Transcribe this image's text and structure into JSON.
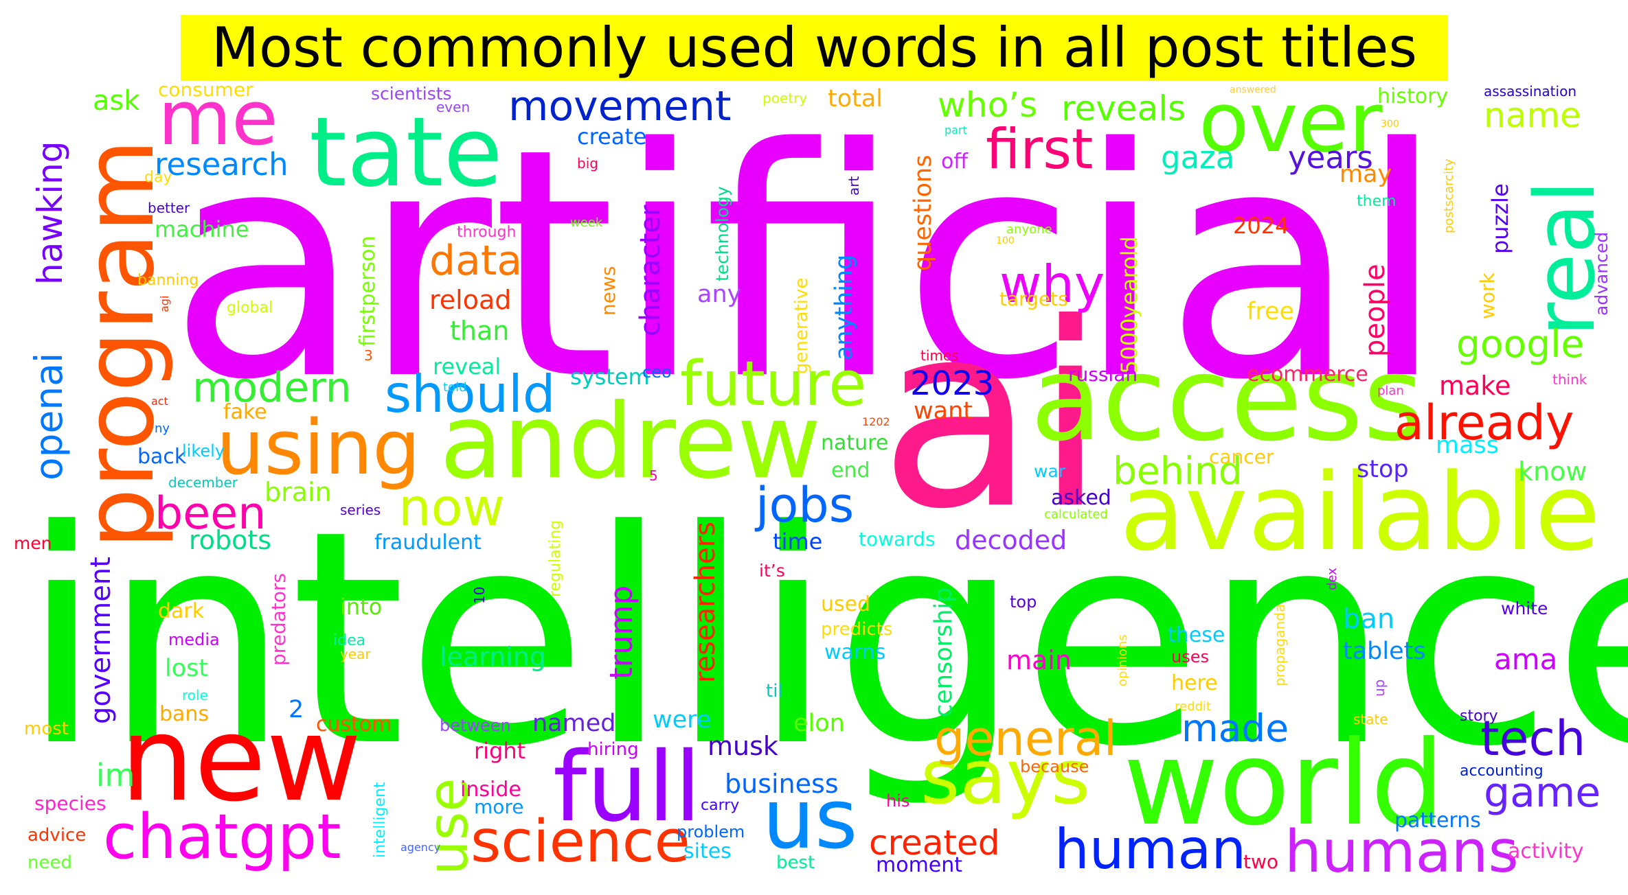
{
  "title": "Most commonly used words in all post titles",
  "words": [
    {
      "text": "artificial",
      "color": "#e800ff"
    },
    {
      "text": "intelligence",
      "color": "#00ee00"
    },
    {
      "text": "ai",
      "color": "#ff1a8c"
    },
    {
      "text": "access",
      "color": "#8cff00"
    },
    {
      "text": "available",
      "color": "#ccff00"
    },
    {
      "text": "andrew",
      "color": "#99ff00"
    },
    {
      "text": "world",
      "color": "#33ff00"
    },
    {
      "text": "new",
      "color": "#ff0000"
    },
    {
      "text": "full",
      "color": "#9900ff"
    },
    {
      "text": "program",
      "color": "#ff5500"
    },
    {
      "text": "tate",
      "color": "#00ee88"
    },
    {
      "text": "real",
      "color": "#00ee99"
    },
    {
      "text": "over",
      "color": "#55ff00"
    },
    {
      "text": "us",
      "color": "#0088ff"
    },
    {
      "text": "using",
      "color": "#ff8800"
    },
    {
      "text": "says",
      "color": "#ccff00"
    },
    {
      "text": "me",
      "color": "#ff33cc"
    },
    {
      "text": "chatgpt",
      "color": "#ff00ee"
    },
    {
      "text": "science",
      "color": "#ff3300"
    },
    {
      "text": "humans",
      "color": "#cc22ff"
    },
    {
      "text": "future",
      "color": "#99ff00"
    },
    {
      "text": "human",
      "color": "#0022ff"
    },
    {
      "text": "use",
      "color": "#99ff00"
    },
    {
      "text": "general",
      "color": "#ffaa00"
    },
    {
      "text": "first",
      "color": "#ff0077"
    },
    {
      "text": "why",
      "color": "#ee00ff"
    },
    {
      "text": "already",
      "color": "#ff1100"
    },
    {
      "text": "should",
      "color": "#0099ff"
    },
    {
      "text": "now",
      "color": "#ccff00"
    },
    {
      "text": "jobs",
      "color": "#0066ff"
    },
    {
      "text": "been",
      "color": "#ff00aa"
    },
    {
      "text": "movement",
      "color": "#0022cc"
    },
    {
      "text": "tech",
      "color": "#4400dd"
    },
    {
      "text": "game",
      "color": "#6622ff"
    },
    {
      "text": "made",
      "color": "#0077ff"
    },
    {
      "text": "created",
      "color": "#ff2200"
    },
    {
      "text": "google",
      "color": "#66ff00"
    },
    {
      "text": "behind",
      "color": "#88ff00"
    },
    {
      "text": "modern",
      "color": "#33ee33"
    },
    {
      "text": "data",
      "color": "#ff7700"
    },
    {
      "text": "hawking",
      "color": "#7700ff"
    },
    {
      "text": "openai",
      "color": "#0077ff"
    },
    {
      "text": "government",
      "color": "#5500ff"
    },
    {
      "text": "research",
      "color": "#0088ff"
    },
    {
      "text": "people",
      "color": "#ff0066"
    },
    {
      "text": "name",
      "color": "#bbff00"
    },
    {
      "text": "who’s",
      "color": "#66ff00"
    },
    {
      "text": "reveals",
      "color": "#55ff00"
    },
    {
      "text": "gaza",
      "color": "#00eebb"
    },
    {
      "text": "years",
      "color": "#5511dd"
    },
    {
      "text": "2023",
      "color": "#1100ee"
    },
    {
      "text": "character",
      "color": "#9900ff"
    },
    {
      "text": "researchers",
      "color": "#ff2200"
    },
    {
      "text": "trump",
      "color": "#cc00ff"
    },
    {
      "text": "censorship",
      "color": "#00ee66"
    },
    {
      "text": "decoded",
      "color": "#9933ff"
    },
    {
      "text": "robots",
      "color": "#00dd88"
    },
    {
      "text": "brain",
      "color": "#88ff00"
    },
    {
      "text": "learning",
      "color": "#00ee88"
    },
    {
      "text": "musk",
      "color": "#4400cc"
    },
    {
      "text": "business",
      "color": "#0066ff"
    },
    {
      "text": "ama",
      "color": "#cc00ff"
    },
    {
      "text": "main",
      "color": "#ff00cc"
    },
    {
      "text": "ban",
      "color": "#00ccff"
    },
    {
      "text": "tablets",
      "color": "#0088ff"
    },
    {
      "text": "im",
      "color": "#33ff55"
    },
    {
      "text": "ask",
      "color": "#55ff00"
    },
    {
      "text": "machine",
      "color": "#44ee44"
    },
    {
      "text": "questions",
      "color": "#ff6600"
    },
    {
      "text": "firstperson",
      "color": "#77ff00"
    },
    {
      "text": "5000yearold",
      "color": "#ccff00"
    },
    {
      "text": "anything",
      "color": "#0088ff"
    },
    {
      "text": "make",
      "color": "#ff0055"
    },
    {
      "text": "mass",
      "color": "#00eeff"
    },
    {
      "text": "know",
      "color": "#44ff44"
    },
    {
      "text": "stop",
      "color": "#5522ff"
    },
    {
      "text": "fraudulent",
      "color": "#0099ff"
    },
    {
      "text": "time",
      "color": "#0044ff"
    },
    {
      "text": "towards",
      "color": "#00ffdd"
    },
    {
      "text": "were",
      "color": "#00ccff"
    },
    {
      "text": "named",
      "color": "#6622dd"
    },
    {
      "text": "elon",
      "color": "#55ff00"
    },
    {
      "text": "right",
      "color": "#ff0077"
    },
    {
      "text": "inside",
      "color": "#ff0099"
    },
    {
      "text": "more",
      "color": "#0099ff"
    },
    {
      "text": "sites",
      "color": "#00ccff"
    },
    {
      "text": "moment",
      "color": "#4400ff"
    },
    {
      "text": "two",
      "color": "#ff0044"
    },
    {
      "text": "best",
      "color": "#00ee99"
    },
    {
      "text": "patterns",
      "color": "#0077ff"
    },
    {
      "text": "activity",
      "color": "#ff33cc"
    },
    {
      "text": "species",
      "color": "#ff22cc"
    },
    {
      "text": "advice",
      "color": "#ff3300"
    },
    {
      "text": "need",
      "color": "#66ff33"
    },
    {
      "text": "most",
      "color": "#ffcc00"
    },
    {
      "text": "custom",
      "color": "#ff5500"
    },
    {
      "text": "bans",
      "color": "#ffaa00"
    },
    {
      "text": "lost",
      "color": "#33ff55"
    },
    {
      "text": "into",
      "color": "#55ee00"
    },
    {
      "text": "dark",
      "color": "#ffcc00"
    },
    {
      "text": "2",
      "color": "#0077ff"
    },
    {
      "text": "predators",
      "color": "#ff33cc"
    },
    {
      "text": "reveal",
      "color": "#00ee99"
    },
    {
      "text": "system",
      "color": "#00ccbb"
    },
    {
      "text": "reload",
      "color": "#ff3300"
    },
    {
      "text": "than",
      "color": "#33ee33"
    },
    {
      "text": "news",
      "color": "#ff8800"
    },
    {
      "text": "create",
      "color": "#0066ff"
    },
    {
      "text": "total",
      "color": "#ffaa00"
    },
    {
      "text": "consumer",
      "color": "#ffdd00"
    },
    {
      "text": "scientists",
      "color": "#9944ff"
    },
    {
      "text": "history",
      "color": "#66ff00"
    },
    {
      "text": "assassination",
      "color": "#2200dd"
    },
    {
      "text": "may",
      "color": "#ff8800"
    },
    {
      "text": "2024",
      "color": "#ff3300"
    },
    {
      "text": "free",
      "color": "#ffdd00"
    },
    {
      "text": "puzzle",
      "color": "#5500ee"
    },
    {
      "text": "work",
      "color": "#ffcc00"
    },
    {
      "text": "advanced",
      "color": "#9933ff"
    },
    {
      "text": "ecommerce",
      "color": "#ff2266"
    },
    {
      "text": "russian",
      "color": "#cc00ff"
    },
    {
      "text": "want",
      "color": "#ff4400"
    },
    {
      "text": "off",
      "color": "#cc22ff"
    },
    {
      "text": "generative",
      "color": "#ffdd00"
    },
    {
      "text": "technology",
      "color": "#00dd88"
    },
    {
      "text": "any",
      "color": "#aa44ff"
    },
    {
      "text": "nature",
      "color": "#33dd33"
    },
    {
      "text": "end",
      "color": "#44ee44"
    },
    {
      "text": "war",
      "color": "#00ccff"
    },
    {
      "text": "asked",
      "color": "#4400cc"
    },
    {
      "text": "cancer",
      "color": "#ffcc00"
    },
    {
      "text": "fake",
      "color": "#ffaa00"
    },
    {
      "text": "back",
      "color": "#0066ff"
    },
    {
      "text": "likely",
      "color": "#00ccff"
    },
    {
      "text": "ceo",
      "color": "#0066ff"
    },
    {
      "text": "targets",
      "color": "#ffcc00"
    },
    {
      "text": "top",
      "color": "#5500dd"
    },
    {
      "text": "used",
      "color": "#ffcc00"
    },
    {
      "text": "predicts",
      "color": "#ffdd00"
    },
    {
      "text": "warns",
      "color": "#00ccff"
    },
    {
      "text": "these",
      "color": "#00ccff"
    },
    {
      "text": "uses",
      "color": "#ff0055"
    },
    {
      "text": "here",
      "color": "#ffcc00"
    },
    {
      "text": "white",
      "color": "#5500ee"
    },
    {
      "text": "story",
      "color": "#4400cc"
    },
    {
      "text": "accounting",
      "color": "#0022cc"
    },
    {
      "text": "hiring",
      "color": "#cc00ff"
    },
    {
      "text": "til",
      "color": "#00ccbb"
    },
    {
      "text": "carry",
      "color": "#4400ff"
    },
    {
      "text": "problem",
      "color": "#0066ff"
    },
    {
      "text": "his",
      "color": "#ff0099"
    },
    {
      "text": "because",
      "color": "#ff6600"
    },
    {
      "text": "it’s",
      "color": "#ff0055"
    },
    {
      "text": "between",
      "color": "#9944ff"
    },
    {
      "text": "intelligent",
      "color": "#00eeff"
    },
    {
      "text": "agency",
      "color": "#4466ff"
    },
    {
      "text": "media",
      "color": "#cc00ff"
    },
    {
      "text": "idea",
      "color": "#00eeaa"
    },
    {
      "text": "year",
      "color": "#ffcc00"
    },
    {
      "text": "role",
      "color": "#00ffdd"
    },
    {
      "text": "10",
      "color": "#4400dd"
    },
    {
      "text": "regulating",
      "color": "#ccff00"
    },
    {
      "text": "propaganda",
      "color": "#ffdd00"
    },
    {
      "text": "opinions",
      "color": "#ffdd00"
    },
    {
      "text": "reddit",
      "color": "#ffdd00"
    },
    {
      "text": "up",
      "color": "#aa44ff"
    },
    {
      "text": "state",
      "color": "#ffcc00"
    },
    {
      "text": "dex",
      "color": "#cc00ff"
    },
    {
      "text": "calculated",
      "color": "#88ff00"
    },
    {
      "text": "series",
      "color": "#5500dd"
    },
    {
      "text": "december",
      "color": "#00ccbb"
    },
    {
      "text": "5",
      "color": "#ff00aa"
    },
    {
      "text": "1202",
      "color": "#ff4400"
    },
    {
      "text": "times",
      "color": "#ff0044"
    },
    {
      "text": "plan",
      "color": "#ff33cc"
    },
    {
      "text": "think",
      "color": "#ff33cc"
    },
    {
      "text": "told",
      "color": "#00ccff"
    },
    {
      "text": "3",
      "color": "#ff5500"
    },
    {
      "text": "act",
      "color": "#ff2200"
    },
    {
      "text": "ny",
      "color": "#0066ff"
    },
    {
      "text": "men",
      "color": "#ff0033"
    },
    {
      "text": "global",
      "color": "#ccff00"
    },
    {
      "text": "banning",
      "color": "#ffcc00"
    },
    {
      "text": "agi",
      "color": "#ff3300"
    },
    {
      "text": "better",
      "color": "#4400cc"
    },
    {
      "text": "day",
      "color": "#ffdd00"
    },
    {
      "text": "even",
      "color": "#9944ff"
    },
    {
      "text": "big",
      "color": "#ff0055"
    },
    {
      "text": "through",
      "color": "#ff33cc"
    },
    {
      "text": "week",
      "color": "#66ff00"
    },
    {
      "text": "poetry",
      "color": "#ccff00"
    },
    {
      "text": "part",
      "color": "#00eebb"
    },
    {
      "text": "answered",
      "color": "#ffcc44"
    },
    {
      "text": "300",
      "color": "#ffcc00"
    },
    {
      "text": "them",
      "color": "#00ee99"
    },
    {
      "text": "postscarcity",
      "color": "#ffcc00"
    },
    {
      "text": "anyone",
      "color": "#88ff00"
    },
    {
      "text": "100",
      "color": "#ffcc00"
    },
    {
      "text": "art",
      "color": "#4400cc"
    }
  ]
}
